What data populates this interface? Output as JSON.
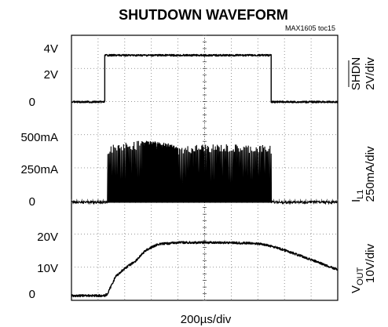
{
  "chart_data": {
    "type": "line",
    "title": "SHUTDOWN WAVEFORM",
    "figure_id": "MAX1605 toc15",
    "xlabel": "200µs/div",
    "x_range_us": [
      0,
      2000
    ],
    "grid": true,
    "grid_divisions": {
      "x": 10,
      "y": 8
    },
    "channels": [
      {
        "name": "SHDN",
        "scale": "2V/div",
        "ytick_labels": [
          "4V",
          "2V",
          "0"
        ],
        "ytick_values": [
          4,
          2,
          0
        ],
        "unit": "V",
        "color": "#000000",
        "points": [
          [
            0,
            0
          ],
          [
            250,
            0
          ],
          [
            250,
            3.5
          ],
          [
            1500,
            3.5
          ],
          [
            1500,
            0
          ],
          [
            2000,
            0
          ]
        ]
      },
      {
        "name": "IL1",
        "scale": "250mA/div",
        "ytick_labels": [
          "500mA",
          "250mA",
          "0"
        ],
        "ytick_values": [
          500,
          250,
          0
        ],
        "unit": "mA",
        "color": "#000000",
        "baseline": 0,
        "switching_start_us": 270,
        "switching_end_us": 1500,
        "dense_burst_us": [
          530,
          800
        ],
        "peak_envelope": [
          [
            270,
            440
          ],
          [
            400,
            470
          ],
          [
            530,
            480
          ],
          [
            700,
            470
          ],
          [
            800,
            430
          ],
          [
            1000,
            455
          ],
          [
            1200,
            450
          ],
          [
            1500,
            445
          ]
        ]
      },
      {
        "name": "VOUT",
        "scale": "10V/div",
        "ytick_labels": [
          "20V",
          "10V",
          "0"
        ],
        "ytick_values": [
          20,
          10,
          0
        ],
        "unit": "V",
        "color": "#000000",
        "points": [
          [
            0,
            0
          ],
          [
            250,
            0
          ],
          [
            270,
            0.5
          ],
          [
            330,
            6
          ],
          [
            400,
            8.7
          ],
          [
            480,
            11
          ],
          [
            560,
            14.5
          ],
          [
            650,
            16.4
          ],
          [
            800,
            16.9
          ],
          [
            1000,
            16.9
          ],
          [
            1200,
            16.9
          ],
          [
            1400,
            16.6
          ],
          [
            1500,
            15.8
          ],
          [
            1600,
            14.5
          ],
          [
            1700,
            13
          ],
          [
            1800,
            11.5
          ],
          [
            1900,
            9.8
          ],
          [
            2000,
            8.3
          ]
        ]
      }
    ]
  },
  "labels": {
    "title": "SHUTDOWN WAVEFORM",
    "figure_id": "MAX1605 toc15",
    "xlabel": "200µs/div",
    "shdn_main": "SHDN",
    "shdn_scale": "2V/div",
    "il_main": "I",
    "il_sub": "L1",
    "il_scale": "250mA/div",
    "vout_main": "V",
    "vout_sub": "OUT",
    "vout_scale": "10V/div",
    "ytick_shdn": [
      "4V",
      "2V",
      "0"
    ],
    "ytick_il": [
      "500mA",
      "250mA",
      "0"
    ],
    "ytick_vout": [
      "20V",
      "10V",
      "0"
    ]
  }
}
